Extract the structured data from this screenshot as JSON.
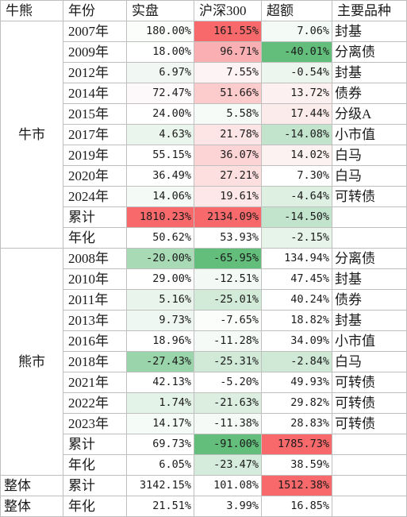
{
  "headers": [
    "牛熊",
    "年份",
    "实盘",
    "沪深300",
    "超额",
    "主要品种"
  ],
  "sections": [
    {
      "name": "牛市",
      "rows": [
        {
          "label": "2007年",
          "values": [
            "180.00%",
            "161.55%",
            "7.06%"
          ],
          "fills": [
            "#fbfdfb",
            "#f8696b",
            "#f4fbf6"
          ],
          "category": "封基"
        },
        {
          "label": "2009年",
          "values": [
            "18.00%",
            "96.71%",
            "-40.01%"
          ],
          "fills": [
            "#ffffff",
            "#fab0b2",
            "#63be7b"
          ],
          "category": "分离债"
        },
        {
          "label": "2012年",
          "values": [
            "6.97%",
            "7.55%",
            "-0.54%"
          ],
          "fills": [
            "#f1f8f3",
            "#fdf3f4",
            "#ecf6ef"
          ],
          "category": "封基"
        },
        {
          "label": "2014年",
          "values": [
            "72.47%",
            "51.66%",
            "13.72%"
          ],
          "fills": [
            "#fdf8f9",
            "#fccbcc",
            "#fcf0f1"
          ],
          "category": "债券"
        },
        {
          "label": "2015年",
          "values": [
            "24.00%",
            "5.58%",
            "17.44%"
          ],
          "fills": [
            "#ffffff",
            "#f7fbf8",
            "#fcebeb"
          ],
          "category": "分级A"
        },
        {
          "label": "2017年",
          "values": [
            "4.63%",
            "21.78%",
            "-14.08%"
          ],
          "fills": [
            "#eaf5ed",
            "#fde4e5",
            "#c3e4cc"
          ],
          "category": "小市值"
        },
        {
          "label": "2019年",
          "values": [
            "55.15%",
            "36.07%",
            "14.02%"
          ],
          "fills": [
            "#ffffff",
            "#fdd4d5",
            "#fcf2f2"
          ],
          "category": "白马"
        },
        {
          "label": "2020年",
          "values": [
            "36.49%",
            "27.21%",
            "7.30%"
          ],
          "fills": [
            "#ffffff",
            "#fddfe0",
            "#ffffff"
          ],
          "category": "白马"
        },
        {
          "label": "2024年",
          "values": [
            "14.06%",
            "19.61%",
            "-4.64%"
          ],
          "fills": [
            "#f4faf6",
            "#fde7e8",
            "#ddf0e2"
          ],
          "category": "可转债"
        }
      ],
      "summary": [
        {
          "label": "累计",
          "values": [
            "1810.23%",
            "2134.09%",
            "-14.50%"
          ],
          "fills": [
            "#f8696b",
            "#f8696b",
            "#c3e4cc"
          ],
          "category": ""
        },
        {
          "label": "年化",
          "values": [
            "50.62%",
            "53.93%",
            "-2.15%"
          ],
          "fills": [
            "#ffffff",
            "#ffffff",
            "#e6f4ea"
          ],
          "category": ""
        }
      ]
    },
    {
      "name": "熊市",
      "rows": [
        {
          "label": "2008年",
          "values": [
            "-20.00%",
            "-65.95%",
            "134.94%"
          ],
          "fills": [
            "#a7dab5",
            "#63be7b",
            "#ffffff"
          ],
          "category": "分离债"
        },
        {
          "label": "2010年",
          "values": [
            "29.00%",
            "-12.51%",
            "47.45%"
          ],
          "fills": [
            "#ffffff",
            "#f3faf5",
            "#ffffff"
          ],
          "category": "封基"
        },
        {
          "label": "2011年",
          "values": [
            "5.16%",
            "-25.01%",
            "40.24%"
          ],
          "fills": [
            "#e9f5ec",
            "#d2ead8",
            "#ffffff"
          ],
          "category": "债券"
        },
        {
          "label": "2013年",
          "values": [
            "9.73%",
            "-7.65%",
            "18.82%"
          ],
          "fills": [
            "#eef7f1",
            "#fbfdfb",
            "#ffffff"
          ],
          "category": "封基"
        },
        {
          "label": "2016年",
          "values": [
            "18.96%",
            "-11.28%",
            "34.09%"
          ],
          "fills": [
            "#ffffff",
            "#f5faf7",
            "#ffffff"
          ],
          "category": "小市值"
        },
        {
          "label": "2018年",
          "values": [
            "-27.43%",
            "-25.31%",
            "-2.84%"
          ],
          "fills": [
            "#9ad4aa",
            "#d1e9d7",
            "#cfe9d6"
          ],
          "category": "白马"
        },
        {
          "label": "2021年",
          "values": [
            "42.13%",
            "-5.20%",
            "49.93%"
          ],
          "fills": [
            "#ffffff",
            "#ffffff",
            "#ffffff"
          ],
          "category": "可转债"
        },
        {
          "label": "2022年",
          "values": [
            "1.74%",
            "-21.63%",
            "29.82%"
          ],
          "fills": [
            "#e4f3e8",
            "#dbeee0",
            "#ffffff"
          ],
          "category": "可转债"
        },
        {
          "label": "2023年",
          "values": [
            "14.17%",
            "-11.38%",
            "28.83%"
          ],
          "fills": [
            "#f5fbf7",
            "#f5faf7",
            "#ffffff"
          ],
          "category": "可转债"
        }
      ],
      "summary": [
        {
          "label": "累计",
          "values": [
            "69.73%",
            "-91.00%",
            "1785.73%"
          ],
          "fills": [
            "#ffffff",
            "#63be7b",
            "#f8696b"
          ],
          "category": ""
        },
        {
          "label": "年化",
          "values": [
            "6.05%",
            "-23.47%",
            "38.59%"
          ],
          "fills": [
            "#ffffff",
            "#d5ebdb",
            "#ffffff"
          ],
          "category": ""
        }
      ]
    }
  ],
  "overall": {
    "name": "整体",
    "rows": [
      {
        "label": "累计",
        "values": [
          "3142.15%",
          "101.08%",
          "1512.38%"
        ],
        "fills": [
          "#ffffff",
          "#ffffff",
          "#f8696b"
        ],
        "category": ""
      },
      {
        "label": "年化",
        "values": [
          "21.51%",
          "3.99%",
          "16.85%"
        ],
        "fills": [
          "#ffffff",
          "#ffffff",
          "#ffffff"
        ],
        "category": ""
      }
    ]
  }
}
